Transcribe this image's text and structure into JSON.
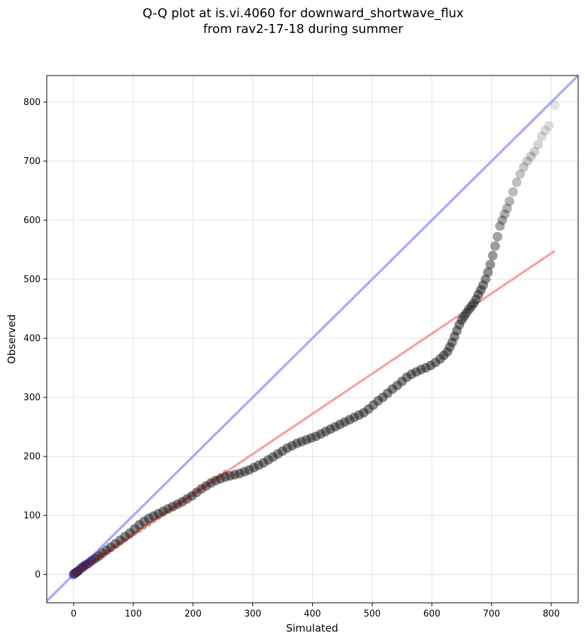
{
  "chart_data": {
    "type": "scatter",
    "title_line1": "Q-Q plot at is.vi.4060 for downward_shortwave_flux",
    "title_line2": "from rav2-17-18 during summer",
    "xlabel": "Simulated",
    "ylabel": "Observed",
    "xlim": [
      -45,
      845
    ],
    "ylim": [
      -48,
      845
    ],
    "xticks": [
      0,
      100,
      200,
      300,
      400,
      500,
      600,
      700,
      800
    ],
    "yticks": [
      0,
      100,
      200,
      300,
      400,
      500,
      600,
      700,
      800
    ],
    "grid": true,
    "one_to_one_line": {
      "color": "#aaaaff",
      "x": [
        -45,
        845
      ],
      "y": [
        -45,
        845
      ]
    },
    "fit_line": {
      "color": "#f5a5a5",
      "x": [
        0,
        806
      ],
      "y": [
        0,
        548
      ]
    },
    "point_color": "#222222",
    "low_points_color": "#1a1a66",
    "fit_overlay_color": "#8b1a1a",
    "points": [
      [
        0,
        0
      ],
      [
        2,
        2
      ],
      [
        5,
        4
      ],
      [
        8,
        6
      ],
      [
        12,
        10
      ],
      [
        16,
        13
      ],
      [
        20,
        16
      ],
      [
        25,
        19
      ],
      [
        30,
        23
      ],
      [
        36,
        27
      ],
      [
        42,
        31
      ],
      [
        48,
        36
      ],
      [
        55,
        41
      ],
      [
        62,
        46
      ],
      [
        70,
        52
      ],
      [
        78,
        58
      ],
      [
        86,
        64
      ],
      [
        94,
        70
      ],
      [
        102,
        77
      ],
      [
        110,
        84
      ],
      [
        118,
        90
      ],
      [
        126,
        95
      ],
      [
        134,
        99
      ],
      [
        142,
        103
      ],
      [
        150,
        107
      ],
      [
        158,
        111
      ],
      [
        166,
        115
      ],
      [
        174,
        119
      ],
      [
        182,
        123
      ],
      [
        190,
        128
      ],
      [
        198,
        133
      ],
      [
        206,
        139
      ],
      [
        214,
        145
      ],
      [
        222,
        150
      ],
      [
        230,
        155
      ],
      [
        238,
        159
      ],
      [
        246,
        162
      ],
      [
        254,
        165
      ],
      [
        262,
        167
      ],
      [
        270,
        169
      ],
      [
        278,
        171
      ],
      [
        286,
        174
      ],
      [
        294,
        177
      ],
      [
        302,
        181
      ],
      [
        310,
        185
      ],
      [
        318,
        189
      ],
      [
        326,
        194
      ],
      [
        334,
        199
      ],
      [
        342,
        204
      ],
      [
        350,
        209
      ],
      [
        358,
        214
      ],
      [
        366,
        218
      ],
      [
        374,
        222
      ],
      [
        382,
        225
      ],
      [
        390,
        228
      ],
      [
        398,
        231
      ],
      [
        406,
        234
      ],
      [
        414,
        238
      ],
      [
        422,
        242
      ],
      [
        430,
        246
      ],
      [
        438,
        250
      ],
      [
        446,
        254
      ],
      [
        454,
        258
      ],
      [
        462,
        262
      ],
      [
        470,
        266
      ],
      [
        478,
        270
      ],
      [
        486,
        274
      ],
      [
        494,
        280
      ],
      [
        502,
        287
      ],
      [
        510,
        294
      ],
      [
        518,
        300
      ],
      [
        526,
        307
      ],
      [
        534,
        314
      ],
      [
        542,
        320
      ],
      [
        550,
        327
      ],
      [
        558,
        334
      ],
      [
        566,
        339
      ],
      [
        574,
        343
      ],
      [
        582,
        347
      ],
      [
        590,
        350
      ],
      [
        598,
        354
      ],
      [
        606,
        359
      ],
      [
        614,
        365
      ],
      [
        620,
        371
      ],
      [
        626,
        377
      ],
      [
        630,
        385
      ],
      [
        634,
        393
      ],
      [
        638,
        403
      ],
      [
        642,
        413
      ],
      [
        646,
        423
      ],
      [
        650,
        431
      ],
      [
        654,
        437
      ],
      [
        658,
        443
      ],
      [
        662,
        449
      ],
      [
        666,
        454
      ],
      [
        670,
        459
      ],
      [
        674,
        466
      ],
      [
        678,
        474
      ],
      [
        682,
        482
      ],
      [
        686,
        490
      ],
      [
        690,
        500
      ],
      [
        694,
        512
      ],
      [
        698,
        525
      ],
      [
        702,
        540
      ],
      [
        706,
        556
      ],
      [
        710,
        572
      ],
      [
        714,
        590
      ],
      [
        718,
        600
      ],
      [
        722,
        610
      ],
      [
        726,
        620
      ],
      [
        730,
        632
      ],
      [
        736,
        648
      ],
      [
        742,
        664
      ],
      [
        748,
        678
      ],
      [
        754,
        690
      ],
      [
        760,
        700
      ],
      [
        766,
        708
      ],
      [
        772,
        716
      ],
      [
        778,
        728
      ],
      [
        784,
        742
      ],
      [
        790,
        752
      ],
      [
        796,
        760
      ],
      [
        806,
        795
      ]
    ]
  }
}
